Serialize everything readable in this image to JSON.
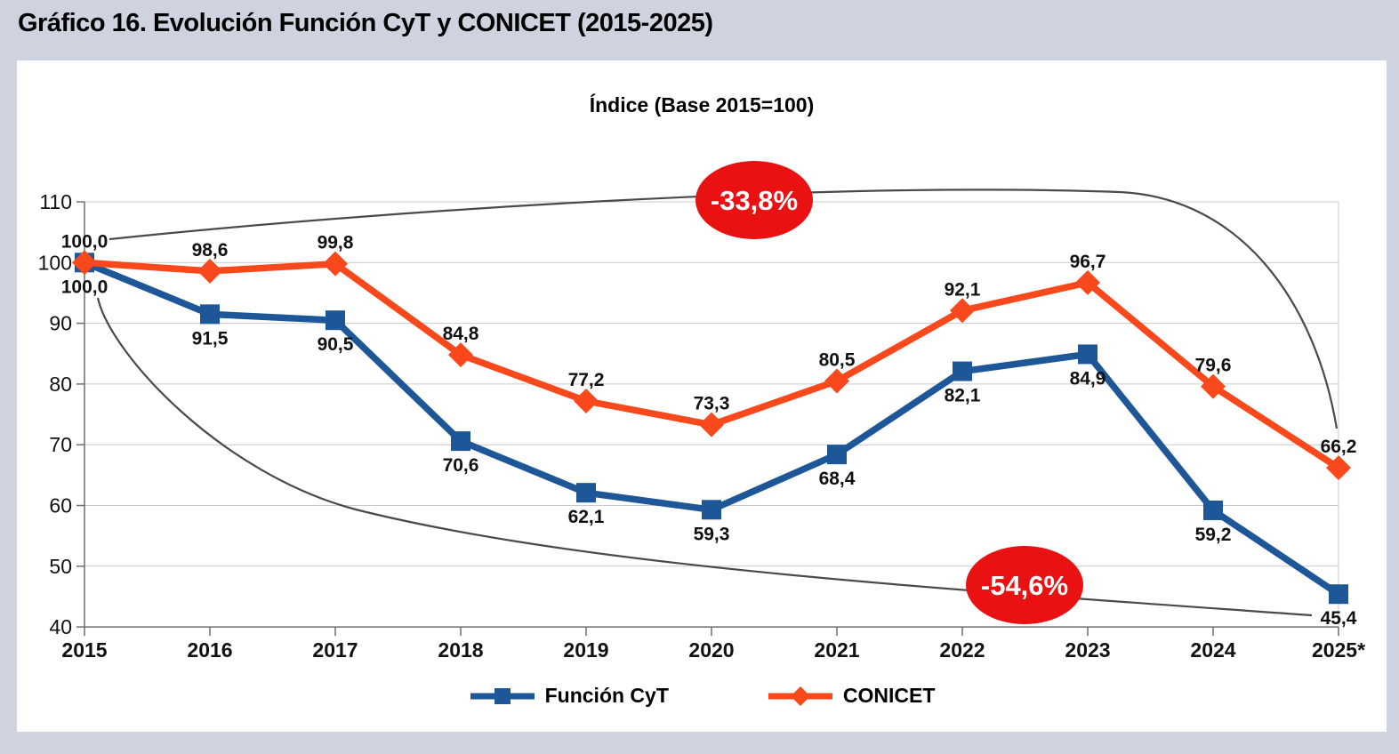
{
  "page": {
    "title": "Gráfico 16. Evolución Función CyT y CONICET (2015-2025)",
    "background_color": "#CFD3DF",
    "panel_color": "#FFFFFF"
  },
  "chart_data": {
    "type": "line",
    "title": "Índice (Base 2015=100)",
    "categories": [
      "2015",
      "2016",
      "2017",
      "2018",
      "2019",
      "2020",
      "2021",
      "2022",
      "2023",
      "2024",
      "2025*"
    ],
    "series": [
      {
        "name": "Función CyT",
        "color": "#1E5798",
        "marker": "square",
        "label_position": "below",
        "values": [
          100.0,
          91.5,
          90.5,
          70.6,
          62.1,
          59.3,
          68.4,
          82.1,
          84.9,
          59.2,
          45.4
        ],
        "labels": [
          "100,0",
          "91,5",
          "90,5",
          "70,6",
          "62,1",
          "59,3",
          "68,4",
          "82,1",
          "84,9",
          "59,2",
          "45,4"
        ]
      },
      {
        "name": "CONICET",
        "color": "#F8481C",
        "marker": "diamond",
        "label_position": "above",
        "values": [
          100.0,
          98.6,
          99.8,
          84.8,
          77.2,
          73.3,
          80.5,
          92.1,
          96.7,
          79.6,
          66.2
        ],
        "labels": [
          "100,0",
          "98,6",
          "99,8",
          "84,8",
          "77,2",
          "73,3",
          "80,5",
          "92,1",
          "96,7",
          "79,6",
          "66,2"
        ]
      }
    ],
    "ylim": [
      40,
      110
    ],
    "yticks": [
      40,
      50,
      60,
      70,
      80,
      90,
      100,
      110
    ],
    "grid": "horizontal",
    "legend_position": "bottom",
    "annotations": [
      {
        "text": "-33,8%",
        "series": "CONICET",
        "fill": "#E91111",
        "text_color": "#FFFFFF"
      },
      {
        "text": "-54,6%",
        "series": "Función CyT",
        "fill": "#E91111",
        "text_color": "#FFFFFF"
      }
    ]
  }
}
